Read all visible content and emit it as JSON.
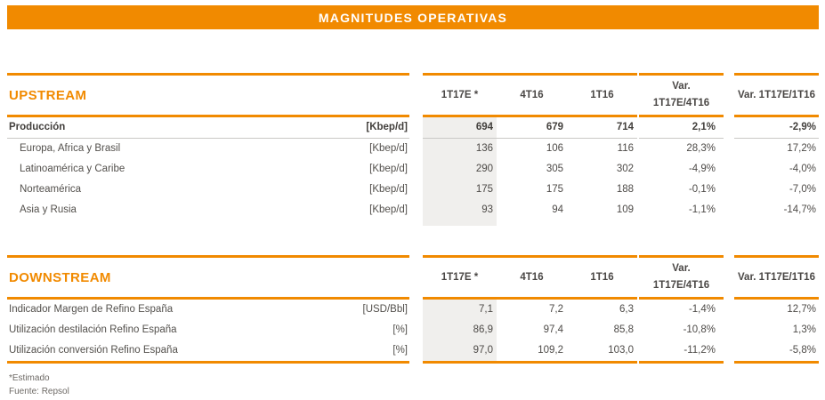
{
  "banner": {
    "title": "MAGNITUDES OPERATIVAS"
  },
  "accent_color": "#F18A00",
  "columns": {
    "col1": "1T17E *",
    "col2": "4T16",
    "col3": "1T16",
    "var1_line1": "Var.",
    "var1_line2": "1T17E/4T16",
    "var2": "Var. 1T17E/1T16"
  },
  "upstream": {
    "title": "UPSTREAM",
    "rows": [
      {
        "label": "Producción",
        "unit": "[Kbep/d]",
        "v1": "694",
        "v2": "679",
        "v3": "714",
        "var1": "2,1%",
        "var2": "-2,9%"
      },
      {
        "label": "Europa, Africa y Brasil",
        "unit": "[Kbep/d]",
        "v1": "136",
        "v2": "106",
        "v3": "116",
        "var1": "28,3%",
        "var2": "17,2%"
      },
      {
        "label": "Latinoamérica y Caribe",
        "unit": "[Kbep/d]",
        "v1": "290",
        "v2": "305",
        "v3": "302",
        "var1": "-4,9%",
        "var2": "-4,0%"
      },
      {
        "label": "Norteamérica",
        "unit": "[Kbep/d]",
        "v1": "175",
        "v2": "175",
        "v3": "188",
        "var1": "-0,1%",
        "var2": "-7,0%"
      },
      {
        "label": "Asia y Rusia",
        "unit": "[Kbep/d]",
        "v1": "93",
        "v2": "94",
        "v3": "109",
        "var1": "-1,1%",
        "var2": "-14,7%"
      }
    ]
  },
  "downstream": {
    "title": "DOWNSTREAM",
    "rows": [
      {
        "label": "Indicador Margen de Refino España",
        "unit": "[USD/Bbl]",
        "v1": "7,1",
        "v2": "7,2",
        "v3": "6,3",
        "var1": "-1,4%",
        "var2": "12,7%"
      },
      {
        "label": "Utilización destilación Refino España",
        "unit": "[%]",
        "v1": "86,9",
        "v2": "97,4",
        "v3": "85,8",
        "var1": "-10,8%",
        "var2": "1,3%"
      },
      {
        "label": "Utilización conversión Refino España",
        "unit": "[%]",
        "v1": "97,0",
        "v2": "109,2",
        "v3": "103,0",
        "var1": "-11,2%",
        "var2": "-5,8%"
      }
    ]
  },
  "footnotes": {
    "estimate": "*Estimado",
    "source": "Fuente: Repsol"
  }
}
